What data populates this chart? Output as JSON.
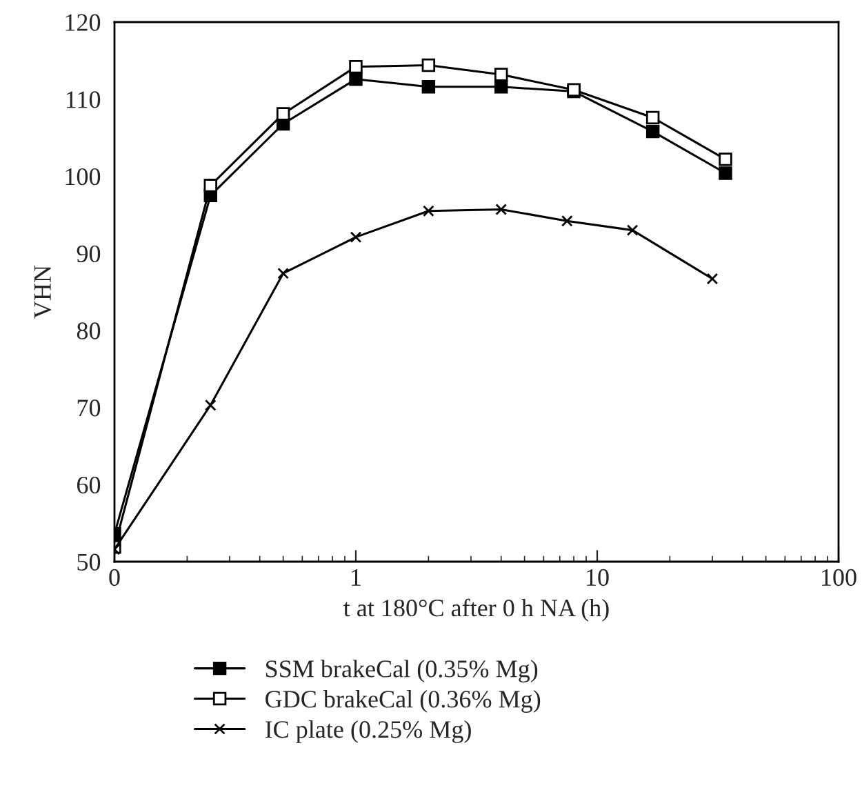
{
  "chart_data": {
    "type": "line",
    "xlabel": "t at 180°C after 0 h NA (h)",
    "ylabel": "VHN",
    "log": "x",
    "xlim": [
      0.1,
      100
    ],
    "xticks": [
      {
        "value": 0.1,
        "label": "0"
      },
      1,
      10,
      100
    ],
    "ylim": [
      50,
      120
    ],
    "yticks": [
      50,
      60,
      70,
      80,
      90,
      100,
      110,
      120
    ],
    "grid": false,
    "legend": "bottom",
    "line_style": "solid",
    "series": [
      {
        "name": "SSM brakeCal (0.35% Mg)",
        "color": "#000000",
        "marker": "square",
        "x": [
          0.1,
          0.25,
          0.5,
          1,
          2,
          4,
          8,
          17,
          34
        ],
        "values": [
          53.6,
          97.5,
          106.8,
          112.6,
          111.6,
          111.6,
          111.0,
          105.8,
          100.4
        ]
      },
      {
        "name": "GDC brakeCal (0.36% Mg)",
        "color": "#ffffff",
        "marker": "square",
        "x": [
          0.1,
          0.25,
          0.5,
          1,
          2,
          4,
          8,
          17,
          34
        ],
        "values": [
          51.9,
          98.8,
          108.1,
          114.2,
          114.4,
          113.2,
          111.2,
          107.6,
          102.2
        ]
      },
      {
        "name": "IC plate (0.25% Mg)",
        "color": "#000000",
        "marker": "cross",
        "x": [
          0.1,
          0.25,
          0.5,
          1,
          2,
          4,
          7.5,
          14,
          30
        ],
        "values": [
          51.6,
          70.3,
          87.4,
          92.1,
          95.5,
          95.7,
          94.2,
          93.0,
          86.7
        ]
      }
    ]
  }
}
